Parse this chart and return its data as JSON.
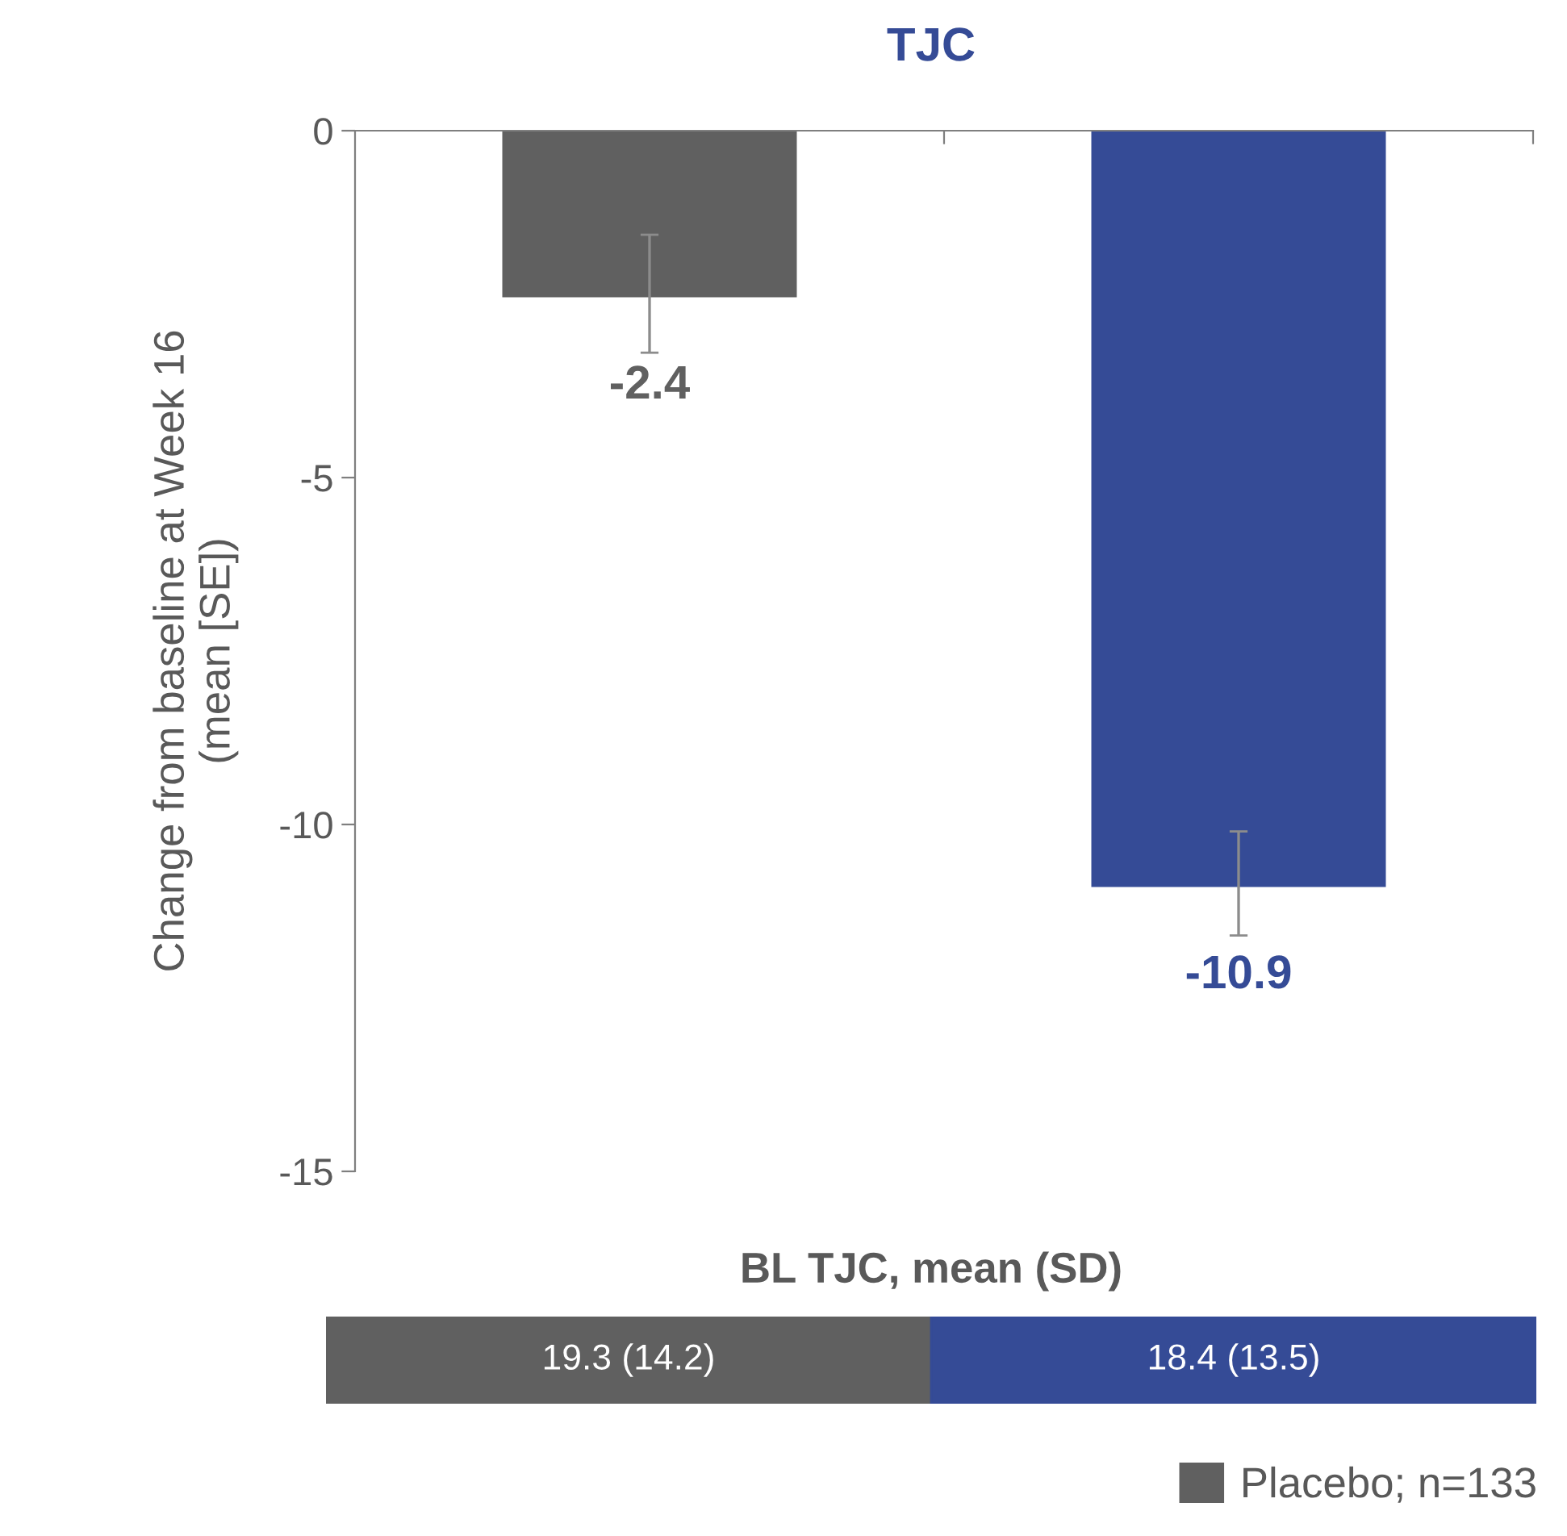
{
  "chart_data": {
    "type": "bar",
    "title": "TJC",
    "ylabel": "Change from baseline at Week 16\n(mean [SE])",
    "categories": [
      null,
      null
    ],
    "series": [
      {
        "name": "Placebo; n=133",
        "color": "#606060",
        "values": [
          -2.4,
          null
        ],
        "errors": [
          [
            -3.2,
            -1.5
          ],
          null
        ]
      },
      {
        "color": "#354b96",
        "values": [
          null,
          -10.9
        ],
        "errors": [
          null,
          [
            -11.6,
            -10.1
          ]
        ]
      }
    ],
    "ylim": [
      -15,
      0
    ],
    "yticks": [
      -15,
      -10,
      -5,
      0
    ],
    "data_labels": true,
    "legend": "bottom right",
    "annotations": [
      "BL TJC, mean (SD)",
      "19.3 (14.2)",
      "18.4 (13.5)"
    ]
  }
}
